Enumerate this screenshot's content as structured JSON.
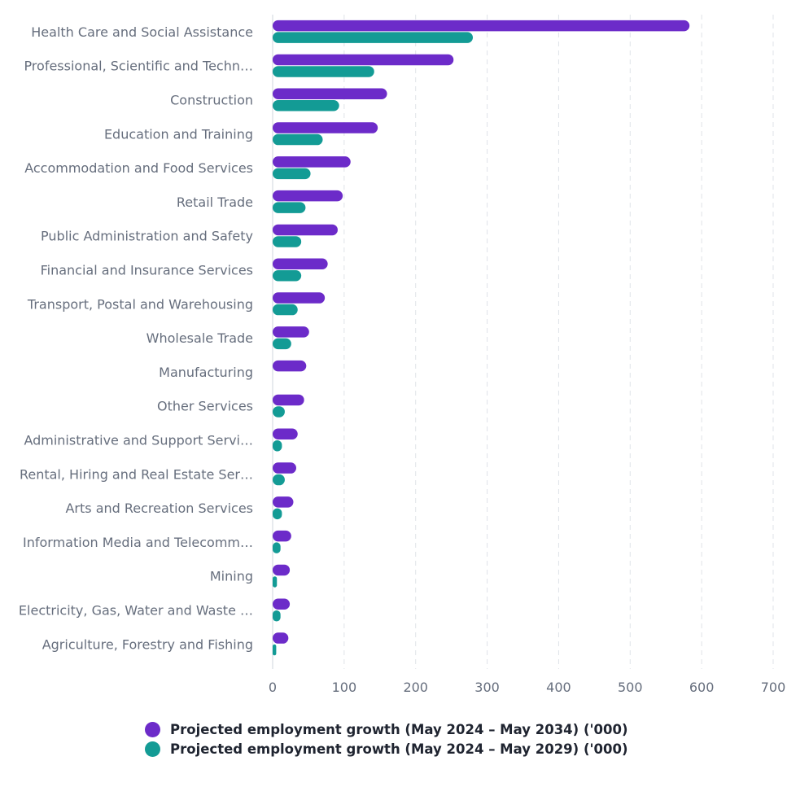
{
  "chart_data": {
    "type": "bar",
    "orientation": "horizontal",
    "categories": [
      "Health Care and Social Assistance",
      "Professional, Scientific and Techn…",
      "Construction",
      "Education and Training",
      "Accommodation and Food Services",
      "Retail Trade",
      "Public Administration and Safety",
      "Financial and Insurance Services",
      "Transport, Postal and Warehousing",
      "Wholesale Trade",
      "Manufacturing",
      "Other Services",
      "Administrative and Support Servi…",
      "Rental, Hiring and Real Estate Ser…",
      "Arts and Recreation Services",
      "Information Media and Telecomm…",
      "Mining",
      "Electricity, Gas, Water and Waste …",
      "Agriculture, Forestry and Fishing"
    ],
    "series": [
      {
        "name": "Projected employment growth (May 2024 – May 2034) ('000)",
        "color": "#6c2bc9",
        "values": [
          583,
          253,
          160,
          147,
          109,
          98,
          91,
          77,
          73,
          51,
          47,
          44,
          35,
          33,
          29,
          26,
          24,
          24,
          22
        ]
      },
      {
        "name": "Projected employment growth (May 2024 – May 2029) ('000)",
        "color": "#139b95",
        "values": [
          280,
          142,
          93,
          70,
          53,
          46,
          40,
          40,
          35,
          26,
          0,
          17,
          13,
          17,
          13,
          11,
          6,
          11,
          5
        ]
      }
    ],
    "xticks": [
      "0",
      "100",
      "200",
      "300",
      "400",
      "500",
      "600",
      "700"
    ],
    "xlim": [
      0,
      700
    ],
    "grid": "vertical dashed",
    "legend_position": "bottom"
  }
}
